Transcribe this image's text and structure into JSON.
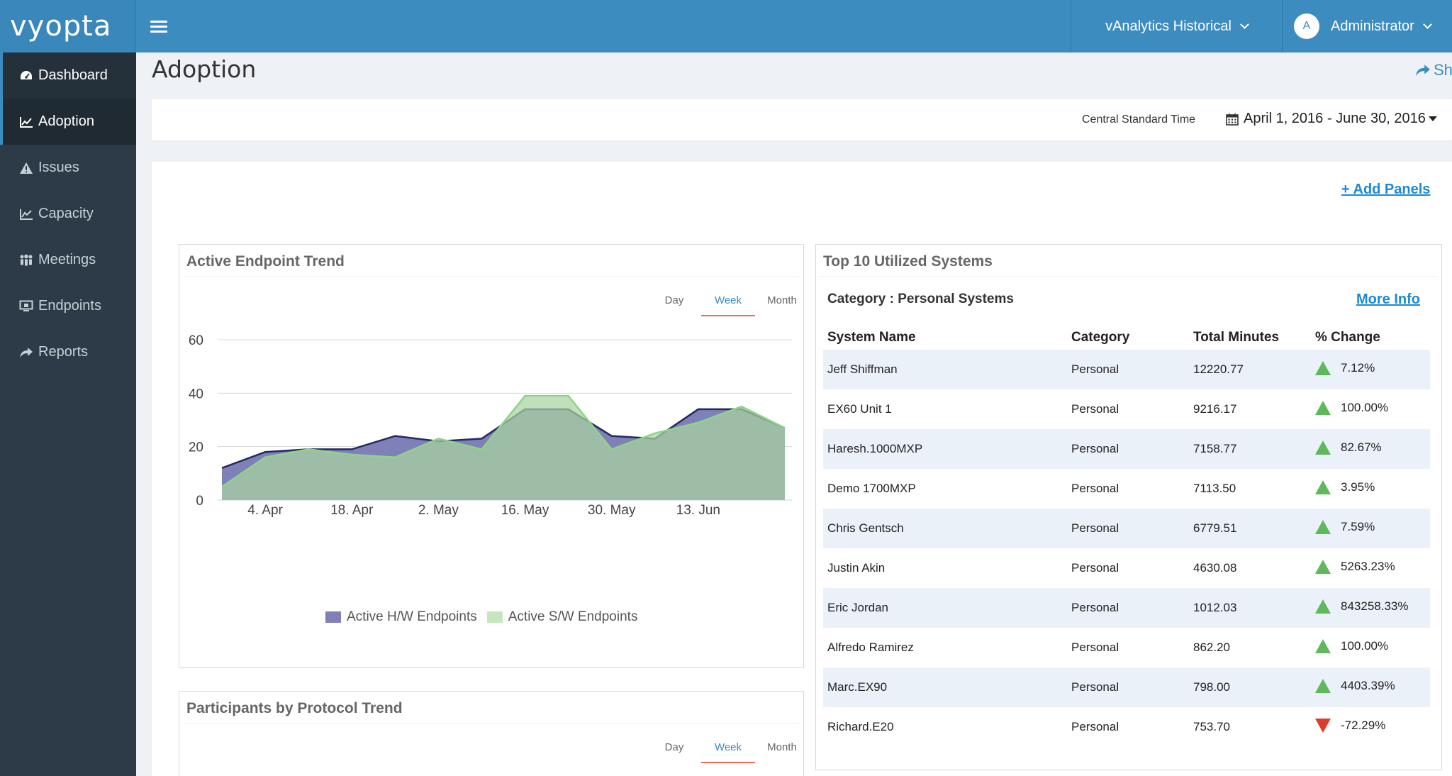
{
  "app": {
    "logo": "vyopta",
    "product": "vAnalytics Historical",
    "user": {
      "initial": "A",
      "name": "Administrator"
    }
  },
  "sidebar": {
    "items": [
      {
        "label": "Dashboard",
        "icon": "dashboard-icon"
      },
      {
        "label": "Adoption",
        "icon": "line-chart-icon"
      },
      {
        "label": "Issues",
        "icon": "warning-icon"
      },
      {
        "label": "Capacity",
        "icon": "area-chart-icon"
      },
      {
        "label": "Meetings",
        "icon": "users-icon"
      },
      {
        "label": "Endpoints",
        "icon": "monitor-icon"
      },
      {
        "label": "Reports",
        "icon": "share-icon"
      }
    ]
  },
  "page": {
    "title": "Adoption",
    "share_label": "Sh",
    "timezone": "Central Standard Time",
    "date_range": "April 1, 2016 - June 30, 2016",
    "add_panels": "+ Add Panels"
  },
  "panels": {
    "endpoint_trend": {
      "title": "Active Endpoint Trend",
      "tabs": [
        "Day",
        "Week",
        "Month"
      ],
      "active_tab": "Week"
    },
    "protocol_trend": {
      "title": "Participants by Protocol Trend",
      "tabs": [
        "Day",
        "Week",
        "Month"
      ],
      "active_tab": "Week"
    },
    "top_systems": {
      "title": "Top 10 Utilized Systems",
      "category_label": "Category : Personal Systems",
      "more_info": "More Info",
      "columns": [
        "System Name",
        "Category",
        "Total Minutes",
        "% Change"
      ],
      "rows": [
        {
          "name": "Jeff Shiffman",
          "category": "Personal",
          "minutes": "12220.77",
          "change": "7.12%",
          "dir": "up"
        },
        {
          "name": "EX60 Unit 1",
          "category": "Personal",
          "minutes": "9216.17",
          "change": "100.00%",
          "dir": "up"
        },
        {
          "name": "Haresh.1000MXP",
          "category": "Personal",
          "minutes": "7158.77",
          "change": "82.67%",
          "dir": "up"
        },
        {
          "name": "Demo 1700MXP",
          "category": "Personal",
          "minutes": "7113.50",
          "change": "3.95%",
          "dir": "up"
        },
        {
          "name": "Chris Gentsch",
          "category": "Personal",
          "minutes": "6779.51",
          "change": "7.59%",
          "dir": "up"
        },
        {
          "name": "Justin Akin",
          "category": "Personal",
          "minutes": "4630.08",
          "change": "5263.23%",
          "dir": "up"
        },
        {
          "name": "Eric Jordan",
          "category": "Personal",
          "minutes": "1012.03",
          "change": "843258.33%",
          "dir": "up"
        },
        {
          "name": "Alfredo Ramirez",
          "category": "Personal",
          "minutes": "862.20",
          "change": "100.00%",
          "dir": "up"
        },
        {
          "name": "Marc.EX90",
          "category": "Personal",
          "minutes": "798.00",
          "change": "4403.39%",
          "dir": "up"
        },
        {
          "name": "Richard.E20",
          "category": "Personal",
          "minutes": "753.70",
          "change": "-72.29%",
          "dir": "down"
        }
      ]
    }
  },
  "colors": {
    "brand": "#3d8cc0",
    "sidebar": "#2c3b47",
    "hw_fill": "#8080b8",
    "hw_line": "#232a5e",
    "sw_fill": "#a8d4a0",
    "sw_line": "#8fd38a",
    "up": "#5fb85c",
    "down": "#e03a2c"
  },
  "chart_data": {
    "type": "area",
    "title": "Active Endpoint Trend",
    "xlabel": "",
    "ylabel": "",
    "ylim": [
      0,
      60
    ],
    "yticks": [
      0,
      20,
      40,
      60
    ],
    "x_ticks": [
      "4. Apr",
      "18. Apr",
      "2. May",
      "16. May",
      "30. May",
      "13. Jun"
    ],
    "x": [
      "28. Mar",
      "4. Apr",
      "11. Apr",
      "18. Apr",
      "25. Apr",
      "2. May",
      "9. May",
      "16. May",
      "23. May",
      "30. May",
      "6. Jun",
      "13. Jun",
      "20. Jun",
      "27. Jun"
    ],
    "series": [
      {
        "name": "Active H/W Endpoints",
        "values": [
          12,
          18,
          19,
          19,
          24,
          22,
          23,
          34,
          34,
          24,
          23,
          34,
          34,
          27
        ]
      },
      {
        "name": "Active S/W Endpoints",
        "values": [
          5,
          16,
          19,
          17,
          16,
          23,
          19,
          39,
          39,
          19,
          25,
          29,
          35,
          27
        ]
      }
    ],
    "grid": true,
    "legend": "bottom-center"
  }
}
